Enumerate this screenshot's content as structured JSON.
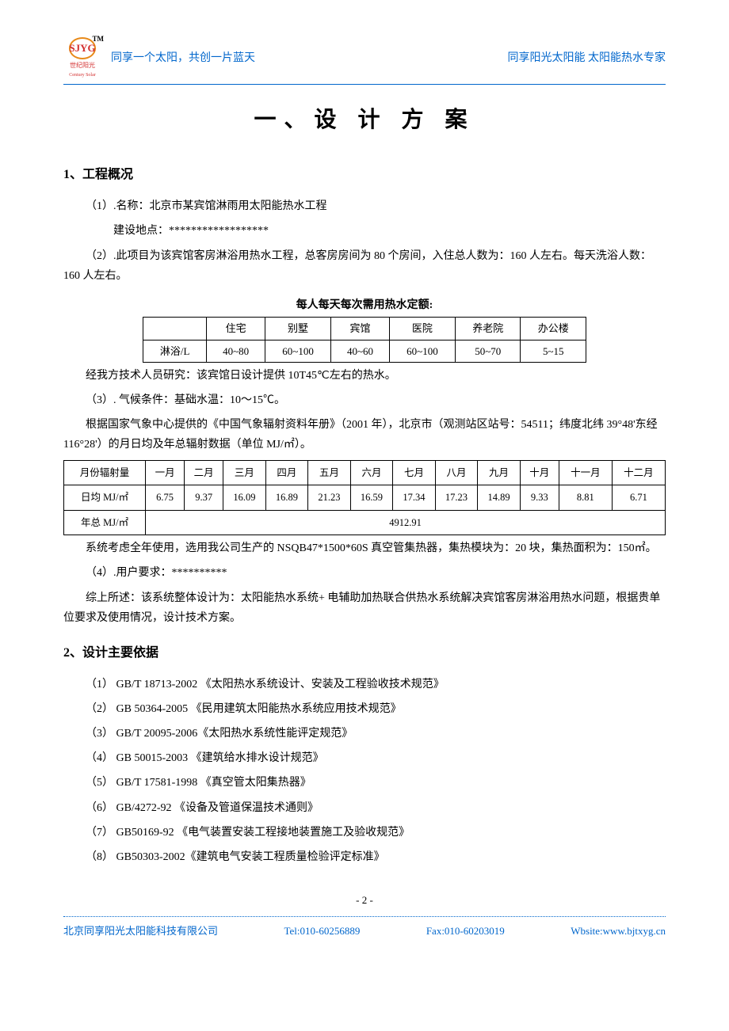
{
  "header": {
    "logo_inner": "SJYG",
    "logo_tm": "TM",
    "logo_cn": "世纪阳光",
    "logo_en": "Century Solar",
    "slogan_left": "同享一个太阳，共创一片蓝天",
    "slogan_right": "同享阳光太阳能 太阳能热水专家"
  },
  "title": "一、设 计 方 案",
  "section1": {
    "heading": "1、工程概况",
    "p1": "（1）.名称：北京市某宾馆淋雨用太阳能热水工程",
    "p1_sub": "建设地点：******************",
    "p2": "（2）.此项目为该宾馆客房淋浴用热水工程，总客房房间为 80 个房间，入住总人数为：160 人左右。每天洗浴人数：160 人左右。",
    "table1_caption": "每人每天每次需用热水定额:",
    "table1": {
      "headers": [
        "",
        "住宅",
        "别墅",
        "宾馆",
        "医院",
        "养老院",
        "办公楼"
      ],
      "row_label": "淋浴/L",
      "row_values": [
        "40~80",
        "60~100",
        "40~60",
        "60~100",
        "50~70",
        "5~15"
      ]
    },
    "p3": "经我方技术人员研究：该宾馆日设计提供 10T45℃左右的热水。",
    "p4": "（3）. 气候条件：基础水温：10～15℃。",
    "p5": "根据国家气象中心提供的《中国气象辐射资料年册》（2001 年），北京市（观测站区站号：54511；纬度北纬 39°48'东经 116°28'）的月日均及年总辐射数据（单位 MJ/㎡）。",
    "table2": {
      "row1_label": "月份辐射量",
      "months": [
        "一月",
        "二月",
        "三月",
        "四月",
        "五月",
        "六月",
        "七月",
        "八月",
        "九月",
        "十月",
        "十一月",
        "十二月"
      ],
      "row2_label": "日均 MJ/㎡",
      "daily_values": [
        "6.75",
        "9.37",
        "16.09",
        "16.89",
        "21.23",
        "16.59",
        "17.34",
        "17.23",
        "14.89",
        "9.33",
        "8.81",
        "6.71"
      ],
      "row3_label": "年总 MJ/㎡",
      "annual_total": "4912.91"
    },
    "p6": "系统考虑全年使用，选用我公司生产的 NSQB47*1500*60S 真空管集热器，集热模块为：20 块，集热面积为：150㎡。",
    "p7": "（4）.用户要求：**********",
    "p8": "综上所述：该系统整体设计为：太阳能热水系统+ 电辅助加热联合供热水系统解决宾馆客房淋浴用热水问题，根据贵单位要求及使用情况，设计技术方案。"
  },
  "section2": {
    "heading": "2、设计主要依据",
    "standards": [
      "（1）  GB/T 18713-2002 《太阳热水系统设计、安装及工程验收技术规范》",
      "（2）  GB 50364-2005 《民用建筑太阳能热水系统应用技术规范》",
      "（3）  GB/T 20095-2006《太阳热水系统性能评定规范》",
      "（4）  GB 50015-2003 《建筑给水排水设计规范》",
      "（5）  GB/T 17581-1998 《真空管太阳集热器》",
      "（6）  GB/4272-92 《设备及管道保温技术通则》",
      "（7）  GB50169-92 《电气装置安装工程接地装置施工及验收规范》",
      "（8）  GB50303-2002《建筑电气安装工程质量检验评定标准》"
    ]
  },
  "page_num": "- 2 -",
  "footer": {
    "company": "北京同享阳光太阳能科技有限公司",
    "tel": "Tel:010-60256889",
    "fax": "Fax:010-60203019",
    "website": "Wbsite:www.bjtxyg.cn"
  }
}
